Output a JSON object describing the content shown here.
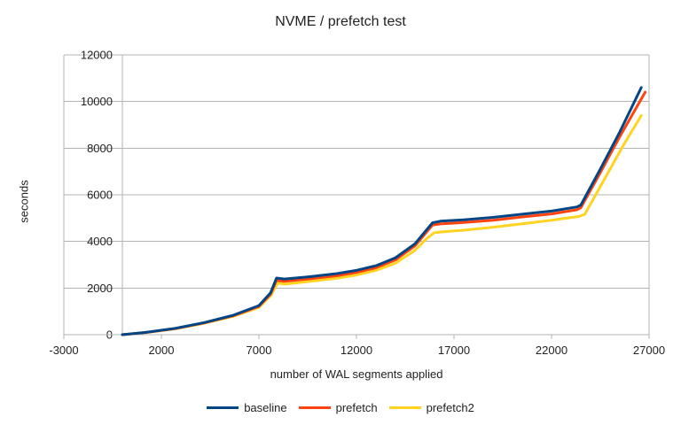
{
  "chart_data": {
    "type": "line",
    "title": "NVME / prefetch test",
    "xlabel": "number of WAL segments applied",
    "ylabel": "seconds",
    "xlim": [
      -3000,
      27000
    ],
    "ylim": [
      0,
      12000
    ],
    "x_ticks": [
      -3000,
      2000,
      7000,
      12000,
      17000,
      22000,
      27000
    ],
    "y_ticks": [
      0,
      2000,
      4000,
      6000,
      8000,
      10000,
      12000
    ],
    "grid": "horizontal-only",
    "grid_color": "#b3b3b3",
    "text_color": "#222222",
    "legend_position": "bottom-center",
    "line_width": 3,
    "series": [
      {
        "name": "baseline",
        "color": "#004586",
        "points": [
          [
            0,
            0
          ],
          [
            1200,
            100
          ],
          [
            2700,
            270
          ],
          [
            4200,
            520
          ],
          [
            5700,
            840
          ],
          [
            7000,
            1250
          ],
          [
            7600,
            1800
          ],
          [
            7900,
            2430
          ],
          [
            8300,
            2390
          ],
          [
            9500,
            2480
          ],
          [
            11000,
            2620
          ],
          [
            12000,
            2760
          ],
          [
            13000,
            2960
          ],
          [
            14000,
            3300
          ],
          [
            15000,
            3900
          ],
          [
            15500,
            4400
          ],
          [
            15900,
            4800
          ],
          [
            16300,
            4870
          ],
          [
            17500,
            4930
          ],
          [
            19000,
            5030
          ],
          [
            20500,
            5170
          ],
          [
            22000,
            5300
          ],
          [
            23300,
            5480
          ],
          [
            23500,
            5560
          ],
          [
            24500,
            7100
          ],
          [
            25500,
            8700
          ],
          [
            26600,
            10600
          ]
        ]
      },
      {
        "name": "prefetch",
        "color": "#ff420e",
        "points": [
          [
            0,
            0
          ],
          [
            1200,
            95
          ],
          [
            2700,
            260
          ],
          [
            4200,
            505
          ],
          [
            5700,
            815
          ],
          [
            7000,
            1215
          ],
          [
            7600,
            1740
          ],
          [
            7900,
            2330
          ],
          [
            8300,
            2290
          ],
          [
            9500,
            2390
          ],
          [
            11000,
            2530
          ],
          [
            12000,
            2670
          ],
          [
            13000,
            2870
          ],
          [
            14000,
            3210
          ],
          [
            15000,
            3810
          ],
          [
            15500,
            4310
          ],
          [
            15900,
            4700
          ],
          [
            16300,
            4750
          ],
          [
            17500,
            4810
          ],
          [
            19000,
            4910
          ],
          [
            20500,
            5050
          ],
          [
            22000,
            5180
          ],
          [
            23300,
            5360
          ],
          [
            23500,
            5440
          ],
          [
            24500,
            6950
          ],
          [
            25500,
            8500
          ],
          [
            26800,
            10400
          ]
        ]
      },
      {
        "name": "prefetch2",
        "color": "#ffd320",
        "points": [
          [
            0,
            0
          ],
          [
            1200,
            90
          ],
          [
            2700,
            250
          ],
          [
            4200,
            490
          ],
          [
            5700,
            790
          ],
          [
            7000,
            1170
          ],
          [
            7600,
            1670
          ],
          [
            7960,
            2210
          ],
          [
            8350,
            2170
          ],
          [
            9500,
            2280
          ],
          [
            11000,
            2420
          ],
          [
            12000,
            2560
          ],
          [
            13000,
            2760
          ],
          [
            14000,
            3070
          ],
          [
            15000,
            3620
          ],
          [
            15600,
            4120
          ],
          [
            16000,
            4380
          ],
          [
            16400,
            4410
          ],
          [
            17500,
            4480
          ],
          [
            19000,
            4610
          ],
          [
            20500,
            4760
          ],
          [
            22000,
            4910
          ],
          [
            23400,
            5070
          ],
          [
            23700,
            5160
          ],
          [
            24700,
            6650
          ],
          [
            25700,
            8150
          ],
          [
            26600,
            9400
          ]
        ]
      }
    ]
  }
}
